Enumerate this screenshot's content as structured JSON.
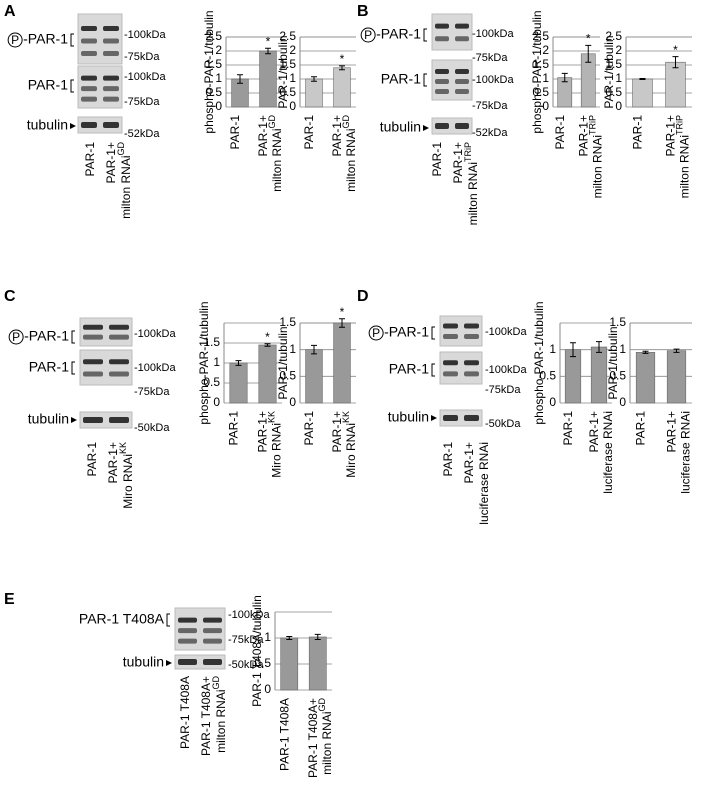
{
  "panels": [
    {
      "letter": "A",
      "phospho_symbol": "P",
      "labels": [
        "-PAR-1",
        "PAR-1",
        "tubulin"
      ],
      "kda": [
        "-100kDa",
        "-75kDa",
        "-100kDa",
        "-75kDa",
        "-52kDa"
      ],
      "lanes": [
        [
          "PAR-1"
        ],
        [
          "PAR-1+",
          "milton RNAi"
        ]
      ],
      "lane_sup": [
        null,
        "GD"
      ]
    },
    {
      "letter": "B",
      "phospho_symbol": "P",
      "labels": [
        "-PAR-1",
        "PAR-1",
        "tubulin"
      ],
      "kda": [
        "-100kDa",
        "-75kDa",
        "-100kDa",
        "-75kDa",
        "-52kDa"
      ],
      "lanes": [
        [
          "PAR-1"
        ],
        [
          "PAR-1+",
          "milton RNAi"
        ]
      ],
      "lane_sup": [
        null,
        "TRiP"
      ]
    },
    {
      "letter": "C",
      "phospho_symbol": "P",
      "labels": [
        "-PAR-1",
        "PAR-1",
        "tubulin"
      ],
      "kda": [
        "-100kDa",
        "-100kDa",
        "-75kDa",
        "-50kDa"
      ],
      "lanes": [
        [
          "PAR-1"
        ],
        [
          "PAR-1+",
          "Miro RNAi"
        ]
      ],
      "lane_sup": [
        null,
        "KK"
      ]
    },
    {
      "letter": "D",
      "phospho_symbol": "P",
      "labels": [
        "-PAR-1",
        "PAR-1",
        "tubulin"
      ],
      "kda": [
        "-100kDa",
        "-100kDa",
        "-75kDa",
        "-50kDa"
      ],
      "lanes": [
        [
          "PAR-1"
        ],
        [
          "PAR-1+",
          "luciferase RNAi"
        ]
      ],
      "lane_sup": [
        null,
        null
      ]
    },
    {
      "letter": "E",
      "labels": [
        "PAR-1 T408A",
        "tubulin"
      ],
      "kda": [
        "-100kDa",
        "-75kDa",
        "-50kDa"
      ],
      "lanes": [
        [
          "PAR-1 T408A"
        ],
        [
          "PAR-1 T408A+",
          "milton RNAi"
        ]
      ],
      "lane_sup": [
        null,
        "GD"
      ]
    }
  ],
  "chart_data": [
    {
      "type": "bar",
      "ylabel": "phospho-PAR-1/tubulin",
      "categories": [
        [
          "PAR-1"
        ],
        [
          "PAR-1+",
          "milton RNAi"
        ]
      ],
      "category_sup": [
        null,
        "GD"
      ],
      "values": [
        1.0,
        2.0
      ],
      "errors": [
        0.15,
        0.1
      ],
      "color": "#9a9a9a",
      "ylim": [
        0,
        2.5
      ],
      "yticks": [
        0,
        0.5,
        1,
        1.5,
        2,
        2.5
      ],
      "grid": true,
      "annotations": [
        null,
        "*"
      ]
    },
    {
      "type": "bar",
      "ylabel": "PAR-1/tubulin",
      "categories": [
        [
          "PAR-1"
        ],
        [
          "PAR-1+",
          "milton RNAi"
        ]
      ],
      "category_sup": [
        null,
        "GD"
      ],
      "values": [
        1.0,
        1.4
      ],
      "errors": [
        0.08,
        0.07
      ],
      "color": "#c8c8c8",
      "ylim": [
        0,
        2.5
      ],
      "yticks": [
        0,
        0.5,
        1,
        1.5,
        2,
        2.5
      ],
      "grid": true,
      "annotations": [
        null,
        "*"
      ]
    },
    {
      "type": "bar",
      "ylabel": "phospho-PAR-1/tubulin",
      "categories": [
        [
          "PAR-1"
        ],
        [
          "PAR-1+",
          "milton RNAi"
        ]
      ],
      "category_sup": [
        null,
        "TRiP"
      ],
      "values": [
        1.05,
        1.9
      ],
      "errors": [
        0.15,
        0.3
      ],
      "color": "#b4b4b4",
      "ylim": [
        0,
        2.5
      ],
      "yticks": [
        0,
        0.5,
        1,
        1.5,
        2,
        2.5
      ],
      "grid": true,
      "annotations": [
        null,
        "*"
      ]
    },
    {
      "type": "bar",
      "ylabel": "PAR-1/tubulin",
      "categories": [
        [
          "PAR-1"
        ],
        [
          "PAR-1+",
          "milton RNAi"
        ]
      ],
      "category_sup": [
        null,
        "TRiP"
      ],
      "values": [
        1.0,
        1.6
      ],
      "errors": [
        0.02,
        0.2
      ],
      "color": "#c8c8c8",
      "ylim": [
        0,
        2.5
      ],
      "yticks": [
        0,
        0.5,
        1,
        1.5,
        2,
        2.5
      ],
      "grid": true,
      "annotations": [
        null,
        "*"
      ]
    },
    {
      "type": "bar",
      "ylabel": "phospho-PAR-1/tubulin",
      "categories": [
        [
          "PAR-1"
        ],
        [
          "PAR-1+",
          "Miro RNAi"
        ]
      ],
      "category_sup": [
        null,
        "KK"
      ],
      "values": [
        1.0,
        1.45
      ],
      "errors": [
        0.06,
        0.03
      ],
      "color": "#999999",
      "ylim": [
        0,
        2
      ],
      "yticks": [
        0,
        0.5,
        1,
        1.5
      ],
      "grid": true,
      "annotations": [
        null,
        "*"
      ]
    },
    {
      "type": "bar",
      "ylabel": "PAR-1/tubulin",
      "categories": [
        [
          "PAR-1"
        ],
        [
          "PAR-1+",
          "Miro RNAi"
        ]
      ],
      "category_sup": [
        null,
        "KK"
      ],
      "values": [
        1.0,
        1.5
      ],
      "errors": [
        0.08,
        0.08
      ],
      "color": "#999999",
      "ylim": [
        0,
        1.5
      ],
      "yticks": [
        0,
        0.5,
        1,
        1.5
      ],
      "grid": true,
      "annotations": [
        null,
        "*"
      ]
    },
    {
      "type": "bar",
      "ylabel": "phospho-PAR-1/tubulin",
      "categories": [
        [
          "PAR-1"
        ],
        [
          "PAR-1+",
          "luciferase RNAi"
        ]
      ],
      "category_sup": [
        null,
        null
      ],
      "values": [
        1.0,
        1.05
      ],
      "errors": [
        0.13,
        0.1
      ],
      "color": "#999999",
      "ylim": [
        0,
        1.5
      ],
      "yticks": [
        0,
        0.5,
        1
      ],
      "grid": true
    },
    {
      "type": "bar",
      "ylabel": "PAR-1/tubulin",
      "categories": [
        [
          "PAR-1"
        ],
        [
          "PAR-1+",
          "luciferase RNAi"
        ]
      ],
      "category_sup": [
        null,
        null
      ],
      "values": [
        0.95,
        0.98
      ],
      "errors": [
        0.02,
        0.03
      ],
      "color": "#999999",
      "ylim": [
        0,
        1.5
      ],
      "yticks": [
        0,
        0.5,
        1,
        1.5
      ],
      "grid": true
    },
    {
      "type": "bar",
      "ylabel": "PAR-1 T408A/tubulin",
      "categories": [
        [
          "PAR-1 T408A"
        ],
        [
          "PAR-1 T408A+",
          "milton RNAi"
        ]
      ],
      "category_sup": [
        null,
        "GD"
      ],
      "values": [
        1.0,
        1.02
      ],
      "errors": [
        0.03,
        0.05
      ],
      "color": "#999999",
      "ylim": [
        0,
        1.5
      ],
      "yticks": [
        0,
        0.5,
        1
      ],
      "grid": true
    }
  ]
}
